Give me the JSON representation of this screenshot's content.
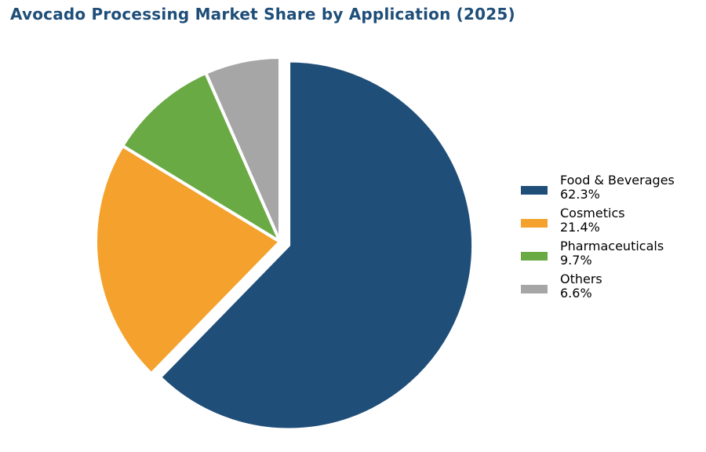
{
  "chart_data": {
    "type": "pie",
    "title": "Avocado Processing Market Share by Application (2025)",
    "legend_position": "right",
    "slices": [
      {
        "label": "Food & Beverages",
        "value": 62.3,
        "value_label": "62.3%",
        "color": "#1f4e79"
      },
      {
        "label": "Cosmetics",
        "value": 21.4,
        "value_label": "21.4%",
        "color": "#f4a22d"
      },
      {
        "label": "Pharmaceuticals",
        "value": 9.7,
        "value_label": "9.7%",
        "color": "#6aaa44"
      },
      {
        "label": "Others",
        "value": 6.6,
        "value_label": "6.6%",
        "color": "#a6a6a6"
      }
    ]
  }
}
